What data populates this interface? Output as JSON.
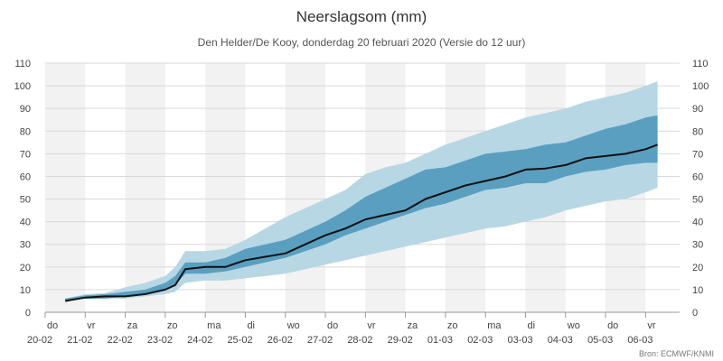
{
  "chart_data": {
    "type": "area",
    "title": "Neerslagsom (mm)",
    "subtitle": "Den Helder/De Kooy, donderdag 20 februari 2020 (Versie do 12 uur)",
    "credit": "Bron: ECMWF/KNMI",
    "ylim": [
      0,
      110
    ],
    "yticks": [
      0,
      10,
      20,
      30,
      40,
      50,
      60,
      70,
      80,
      90,
      100,
      110
    ],
    "grid": true,
    "x_ticks": [
      {
        "day": "do",
        "date": "20-02"
      },
      {
        "day": "vr",
        "date": "21-02"
      },
      {
        "day": "za",
        "date": "22-02"
      },
      {
        "day": "zo",
        "date": "23-02"
      },
      {
        "day": "ma",
        "date": "24-02"
      },
      {
        "day": "di",
        "date": "25-02"
      },
      {
        "day": "wo",
        "date": "26-02"
      },
      {
        "day": "do",
        "date": "27-02"
      },
      {
        "day": "vr",
        "date": "28-02"
      },
      {
        "day": "za",
        "date": "29-02"
      },
      {
        "day": "zo",
        "date": "01-03"
      },
      {
        "day": "ma",
        "date": "02-03"
      },
      {
        "day": "di",
        "date": "03-03"
      },
      {
        "day": "wo",
        "date": "04-03"
      },
      {
        "day": "do",
        "date": "05-03"
      },
      {
        "day": "vr",
        "date": "06-03"
      }
    ],
    "x_days": [
      0.5,
      1,
      1.5,
      2,
      2.5,
      3,
      3.25,
      3.5,
      4,
      4.5,
      5,
      5.5,
      6,
      6.5,
      7,
      7.5,
      8,
      8.5,
      9,
      9.5,
      10,
      10.5,
      11,
      11.5,
      12,
      12.5,
      13,
      13.5,
      14,
      14.5,
      15,
      15.3
    ],
    "series": [
      {
        "role": "outer_lower",
        "values": [
          5,
          6,
          6,
          6,
          7,
          8,
          9,
          13,
          14,
          14,
          15,
          16,
          17,
          19,
          21,
          23,
          25,
          27,
          29,
          31,
          33,
          35,
          37,
          38,
          40,
          42,
          45,
          47,
          49,
          50,
          53,
          55
        ]
      },
      {
        "role": "inner_lower",
        "values": [
          5,
          6,
          6,
          7,
          8,
          10,
          12,
          17,
          17,
          18,
          20,
          22,
          24,
          27,
          30,
          34,
          37,
          40,
          43,
          46,
          48,
          51,
          54,
          55,
          57,
          57,
          60,
          62,
          63,
          65,
          66,
          66
        ]
      },
      {
        "role": "median",
        "values": [
          5,
          6.5,
          7,
          7,
          8,
          10,
          12,
          19,
          20,
          20,
          23,
          24.5,
          26,
          30,
          34,
          37,
          41,
          43,
          45,
          50,
          53,
          56,
          58,
          60,
          63,
          63.5,
          65,
          68,
          69,
          70,
          72,
          74
        ]
      },
      {
        "role": "inner_upper",
        "values": [
          6,
          7.5,
          8,
          9,
          10,
          13,
          16,
          22,
          22,
          24,
          28,
          30,
          32,
          36,
          40,
          45,
          51,
          55,
          59,
          63,
          64,
          67,
          70,
          71,
          72,
          74,
          75,
          78,
          81,
          83,
          86,
          87
        ]
      },
      {
        "role": "outer_upper",
        "values": [
          6,
          8,
          8.5,
          11,
          13,
          16,
          20,
          27,
          27,
          28,
          32,
          37,
          42,
          46,
          50,
          54,
          61,
          64,
          66,
          70,
          74,
          77,
          80,
          83,
          86,
          88,
          90,
          93,
          95,
          97,
          100,
          102
        ]
      }
    ],
    "colors": {
      "outer_band": "#b8d7e4",
      "inner_band": "#5a9fc0",
      "median_line": "#111111",
      "weekend_shade": "#f2f2f2",
      "grid": "#d9d9d9"
    }
  }
}
